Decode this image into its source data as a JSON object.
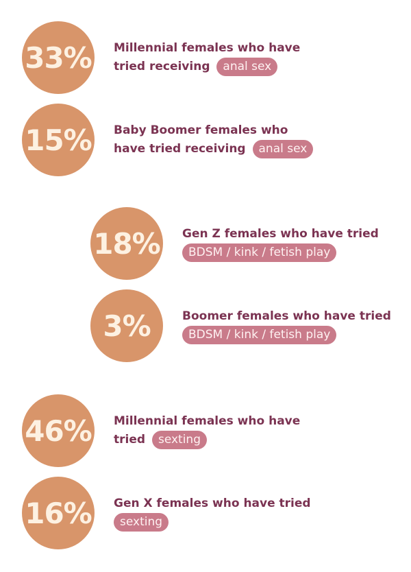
{
  "colors": {
    "circle_bg": "#d8956a",
    "circle_text": "#fdf1e2",
    "label_text": "#7b3352",
    "pill_bg": "#c97b8a",
    "pill_text": "#fff2f2"
  },
  "stats": [
    {
      "value": "33%",
      "line1": "Millennial females who have",
      "line2": "tried receiving",
      "highlight": "anal sex"
    },
    {
      "value": "15%",
      "line1": "Baby Boomer females who",
      "line2": "have tried receiving",
      "highlight": "anal sex"
    },
    {
      "value": "18%",
      "line1": "Gen Z females who have tried",
      "line2": "",
      "highlight": "BDSM / kink / fetish play"
    },
    {
      "value": "3%",
      "line1": "Boomer females who have tried",
      "line2": "",
      "highlight": "BDSM / kink / fetish play"
    },
    {
      "value": "46%",
      "line1": "Millennial females who have",
      "line2": "tried",
      "highlight": "sexting"
    },
    {
      "value": "16%",
      "line1": "Gen X females who have tried",
      "line2": "",
      "highlight": "sexting"
    }
  ]
}
